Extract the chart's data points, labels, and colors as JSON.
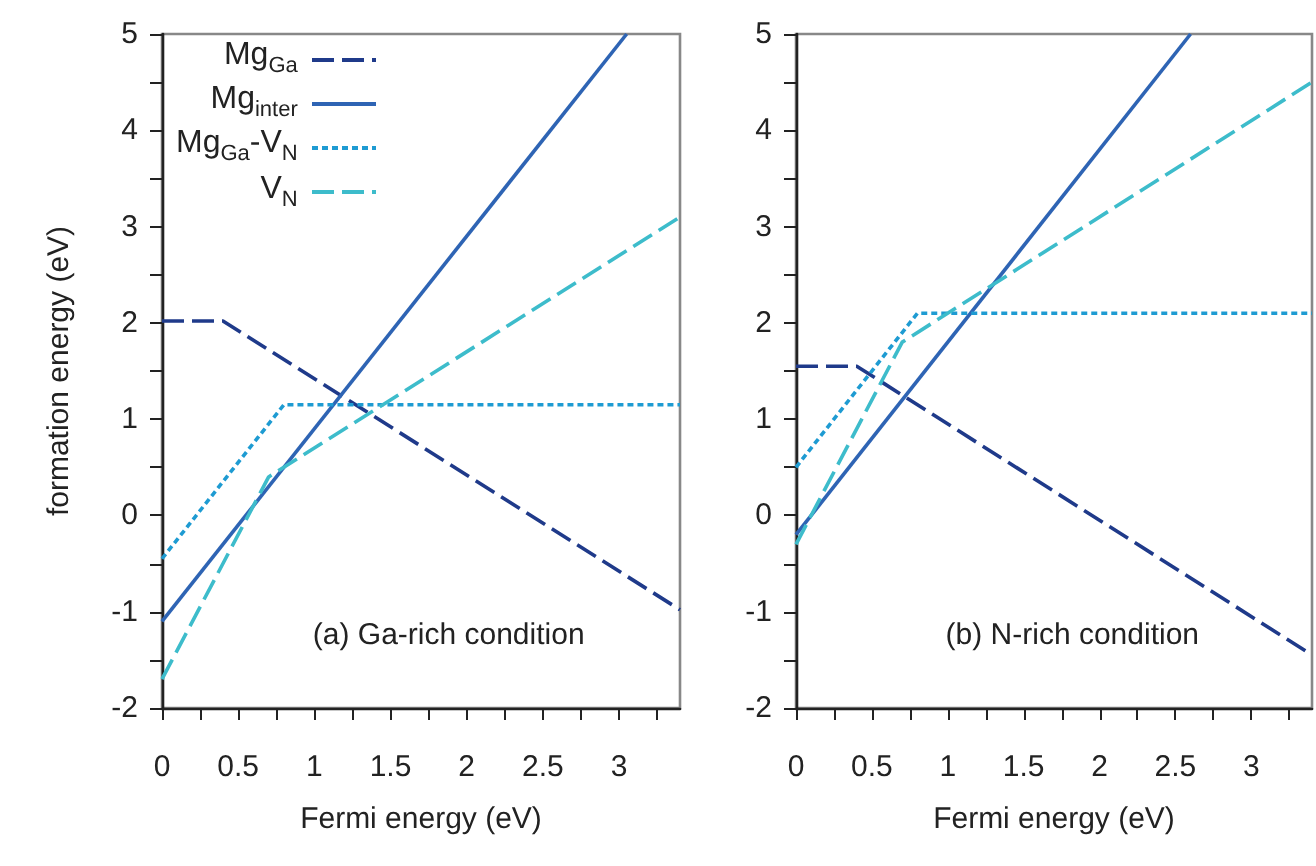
{
  "chart_data": [
    {
      "type": "line",
      "xlabel": "Fermi energy (eV)",
      "ylabel": "formation energy (eV)",
      "annotations": [
        "(a) Ga-rich condition"
      ],
      "xlim": [
        0,
        3.4
      ],
      "ylim": [
        -2,
        5
      ],
      "xticks": [
        0,
        {
          "value": 0.25,
          "label": null
        },
        0.5,
        {
          "value": 0.75,
          "label": null
        },
        1,
        {
          "value": 1.25,
          "label": null
        },
        1.5,
        {
          "value": 1.75,
          "label": null
        },
        2,
        {
          "value": 2.25,
          "label": null
        },
        2.5,
        {
          "value": 2.75,
          "label": null
        },
        3,
        {
          "value": 3.25,
          "label": null
        }
      ],
      "yticks": [
        -2,
        {
          "value": -1.5,
          "label": null
        },
        -1,
        {
          "value": -0.5,
          "label": null
        },
        0,
        {
          "value": 0.5,
          "label": null
        },
        1,
        {
          "value": 1.5,
          "label": null
        },
        2,
        {
          "value": 2.5,
          "label": null
        },
        3,
        {
          "value": 3.5,
          "label": null
        },
        4,
        {
          "value": 4.5,
          "label": null
        },
        5
      ],
      "grid": false,
      "legend": "top left",
      "marker": "none",
      "series": [
        {
          "name": "Mg$_{Ga}$",
          "color": "#1f3a8a",
          "line_style": "dashed",
          "x": [
            0,
            0.4,
            3.4
          ],
          "values": [
            2.02,
            2.02,
            -0.98
          ]
        },
        {
          "name": "Mg$_{inter}$",
          "color": "#2e64b4",
          "line_style": "solid",
          "x": [
            0,
            3.05
          ],
          "values": [
            -1.1,
            5
          ]
        },
        {
          "name": "Mg$_{Ga}$-V$_{N}$",
          "color": "#1e9bd2",
          "line_style": "dotted",
          "x": [
            0,
            0.8,
            3.4
          ],
          "values": [
            -0.45,
            1.15,
            1.15
          ]
        },
        {
          "name": "V$_{N}$",
          "color": "#3dbccb",
          "line_style": "dashed",
          "x": [
            0,
            0.7,
            3.4
          ],
          "values": [
            -1.7,
            0.4,
            3.1
          ]
        }
      ]
    },
    {
      "type": "line",
      "xlabel": "Fermi energy (eV)",
      "annotations": [
        "(b) N-rich condition"
      ],
      "xlim": [
        0,
        3.4
      ],
      "ylim": [
        -2,
        5
      ],
      "xticks": [
        0,
        {
          "value": 0.25,
          "label": null
        },
        0.5,
        {
          "value": 0.75,
          "label": null
        },
        1,
        {
          "value": 1.25,
          "label": null
        },
        1.5,
        {
          "value": 1.75,
          "label": null
        },
        2,
        {
          "value": 2.25,
          "label": null
        },
        2.5,
        {
          "value": 2.75,
          "label": null
        },
        3,
        {
          "value": 3.25,
          "label": null
        }
      ],
      "yticks": [
        -2,
        {
          "value": -1.5,
          "label": null
        },
        -1,
        {
          "value": -0.5,
          "label": null
        },
        0,
        {
          "value": 0.5,
          "label": null
        },
        1,
        {
          "value": 1.5,
          "label": null
        },
        2,
        {
          "value": 2.5,
          "label": null
        },
        3,
        {
          "value": 3.5,
          "label": null
        },
        4,
        {
          "value": 4.5,
          "label": null
        },
        5
      ],
      "grid": false,
      "marker": "none",
      "series": [
        {
          "color": "#1f3a8a",
          "line_style": "dashed",
          "x": [
            0,
            0.4,
            3.4
          ],
          "values": [
            1.55,
            1.55,
            -1.45
          ]
        },
        {
          "color": "#2e64b4",
          "line_style": "solid",
          "x": [
            0,
            2.6
          ],
          "values": [
            -0.2,
            5
          ]
        },
        {
          "color": "#1e9bd2",
          "line_style": "dotted",
          "x": [
            0,
            0.8,
            3.4
          ],
          "values": [
            0.5,
            2.1,
            2.1
          ]
        },
        {
          "color": "#3dbccb",
          "line_style": "dashed",
          "x": [
            0,
            0.7,
            3.4
          ],
          "values": [
            -0.3,
            1.8,
            4.5
          ]
        }
      ]
    }
  ]
}
